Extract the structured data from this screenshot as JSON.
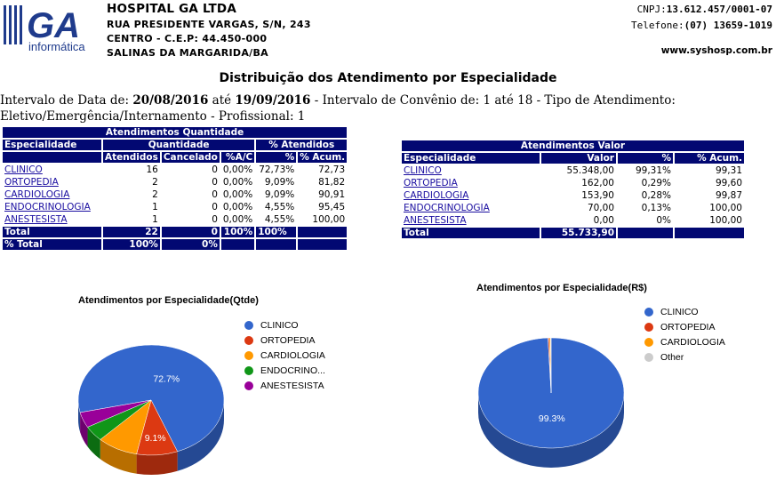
{
  "header": {
    "logo_text": "GA",
    "logo_sub": "informática",
    "name": "HOSPITAL GA LTDA",
    "address": "RUA PRESIDENTE VARGAS, S/N, 243",
    "district": "CENTRO - C.E.P: 44.450-000",
    "city": "SALINAS DA MARGARIDA/BA",
    "cnpj_label": "CNPJ:",
    "cnpj": "13.612.457/0001-07",
    "phone_label": "Telefone:",
    "phone": "(07) 13659-1019",
    "site": "www.syshosp.com.br"
  },
  "title": "Distribuição dos Atendimento por Especialidade",
  "filter": {
    "p1": "Intervalo de Data de: ",
    "d1": "20/08/2016",
    "p2": " até ",
    "d2": "19/09/2016",
    "p3": " - Intervalo de Convênio de: 1 até 18 - Tipo de Atendimento: Eletivo/Emergência/Internamento - Profissional: 1"
  },
  "qty_table": {
    "title": "Atendimentos Quantidade",
    "h_especialidade": "Especialidade",
    "h_quantidade": "Quantidade",
    "h_pct": "% Atendidos",
    "h_atendidos": "Atendidos",
    "h_cancelado": "Cancelado",
    "h_ac": "%A/C",
    "h_p": "%",
    "h_acum": "% Acum.",
    "rows": [
      {
        "esp": "CLINICO",
        "atend": "16",
        "canc": "0",
        "ac": "0,00%",
        "pct": "72,73%",
        "acum": "72,73"
      },
      {
        "esp": "ORTOPEDIA",
        "atend": "2",
        "canc": "0",
        "ac": "0,00%",
        "pct": "9,09%",
        "acum": "81,82"
      },
      {
        "esp": "CARDIOLOGIA",
        "atend": "2",
        "canc": "0",
        "ac": "0,00%",
        "pct": "9,09%",
        "acum": "90,91"
      },
      {
        "esp": "ENDOCRINOLOGIA",
        "atend": "1",
        "canc": "0",
        "ac": "0,00%",
        "pct": "4,55%",
        "acum": "95,45"
      },
      {
        "esp": "ANESTESISTA",
        "atend": "1",
        "canc": "0",
        "ac": "0,00%",
        "pct": "4,55%",
        "acum": "100,00"
      }
    ],
    "total_label": "Total",
    "total_atend": "22",
    "total_canc": "0",
    "total_ac": "100%",
    "total_pct": "100%",
    "ptotal_label": "% Total",
    "ptotal_atend": "100%",
    "ptotal_canc": "0%"
  },
  "val_table": {
    "title": "Atendimentos Valor",
    "h_especialidade": "Especialidade",
    "h_valor": "Valor",
    "h_p": "%",
    "h_acum": "% Acum.",
    "rows": [
      {
        "esp": "CLINICO",
        "valor": "55.348,00",
        "pct": "99,31%",
        "acum": "99,31"
      },
      {
        "esp": "ORTOPEDIA",
        "valor": "162,00",
        "pct": "0,29%",
        "acum": "99,60"
      },
      {
        "esp": "CARDIOLOGIA",
        "valor": "153,90",
        "pct": "0,28%",
        "acum": "99,87"
      },
      {
        "esp": "ENDOCRINOLOGIA",
        "valor": "70,00",
        "pct": "0,13%",
        "acum": "100,00"
      },
      {
        "esp": "ANESTESISTA",
        "valor": "0,00",
        "pct": "0%",
        "acum": "100,00"
      }
    ],
    "total_label": "Total",
    "total_valor": "55.733,90"
  },
  "chart_data": [
    {
      "type": "pie",
      "title": "Atendimentos por Especialidade(Qtde)",
      "categories": [
        "CLINICO",
        "ORTOPEDIA",
        "CARDIOLOGIA",
        "ENDOCRINO...",
        "ANESTESISTA"
      ],
      "values": [
        16,
        2,
        2,
        1,
        1
      ],
      "colors": [
        "#3366cc",
        "#dc3912",
        "#ff9900",
        "#109618",
        "#990099"
      ],
      "slice_labels": [
        "72.7%",
        "9.1%",
        "",
        "",
        ""
      ]
    },
    {
      "type": "pie",
      "title": "Atendimentos por Especialidade(R$)",
      "categories": [
        "CLINICO",
        "ORTOPEDIA",
        "CARDIOLOGIA",
        "Other"
      ],
      "values": [
        55348.0,
        162.0,
        153.9,
        70.0
      ],
      "colors": [
        "#3366cc",
        "#dc3912",
        "#ff9900",
        "#cccccc"
      ],
      "slice_labels": [
        "99.3%",
        "",
        "",
        ""
      ]
    }
  ]
}
